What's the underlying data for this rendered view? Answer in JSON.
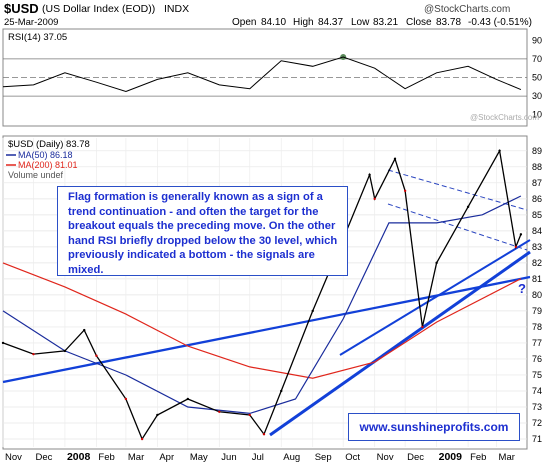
{
  "header": {
    "symbol": "$USD",
    "name": "(US Dollar Index (EOD))",
    "exchange": "INDX",
    "date": "25-Mar-2009",
    "copyright": "@StockCharts.com",
    "open_label": "Open",
    "open": "84.10",
    "high_label": "High",
    "high": "84.37",
    "low_label": "Low",
    "low": "83.21",
    "close_label": "Close",
    "close": "83.78",
    "change": "-0.43 (-0.51%)",
    "watermark": "@StockCharts.com"
  },
  "annotation": "Flag formation is generally known as a sign of a trend continuation - and often the target for the breakout equals the preceding move. On the other hand RSI briefly dropped below the 30 level, which previously indicated a bottom - the signals are mixed.",
  "website": "www.sunshineprofits.com",
  "question_mark": "?",
  "colors": {
    "price": "#000000",
    "up_bar": "#000000",
    "down_bar": "#cc0000",
    "ma50": "#1a2c9c",
    "ma200": "#e0261c",
    "trend": "#1240d8",
    "rsi_fill_over": "#5a8a5a",
    "rsi_fill_under": "#8a3a4a"
  },
  "chart_data": [
    {
      "type": "line",
      "title": "RSI(14) 37.05",
      "indicator": "RSI(14)",
      "last_value": 37.05,
      "y_ticks": [
        "90",
        "70",
        "50",
        "30",
        "10"
      ],
      "ylim": [
        0,
        100
      ],
      "reference_lines": [
        70,
        50,
        30
      ],
      "x": [
        "2007-11",
        "2007-12",
        "2008-01",
        "2008-02",
        "2008-03",
        "2008-04",
        "2008-05",
        "2008-06",
        "2008-07",
        "2008-08",
        "2008-09",
        "2008-10",
        "2008-11",
        "2008-12",
        "2009-01",
        "2009-02",
        "2009-03",
        "2009-03-25"
      ],
      "values": [
        40,
        42,
        55,
        45,
        35,
        48,
        55,
        42,
        38,
        68,
        62,
        72,
        60,
        38,
        55,
        62,
        48,
        37
      ]
    },
    {
      "type": "line",
      "title": "$USD (Daily) 83.78",
      "legend": [
        "$USD (Daily) 83.78",
        "MA(50) 86.18",
        "MA(200) 81.01",
        "Volume undef"
      ],
      "ylim": [
        70.5,
        89.8
      ],
      "y_ticks": [
        "89",
        "88",
        "87",
        "86",
        "85",
        "84",
        "83",
        "82",
        "81",
        "80",
        "79",
        "78",
        "77",
        "76",
        "75",
        "74",
        "73",
        "72",
        "71"
      ],
      "x_ticks": [
        "Nov",
        "Dec",
        "2008",
        "Feb",
        "Mar",
        "Apr",
        "May",
        "Jun",
        "Jul",
        "Aug",
        "Sep",
        "Oct",
        "Nov",
        "Dec",
        "2009",
        "Feb",
        "Mar"
      ],
      "series": [
        {
          "name": "$USD (Daily) 83.78",
          "x": [
            "2007-11-01",
            "2007-12-01",
            "2008-01-01",
            "2008-01-20",
            "2008-02-01",
            "2008-03-01",
            "2008-03-17",
            "2008-04-01",
            "2008-05-01",
            "2008-06-01",
            "2008-07-01",
            "2008-07-15",
            "2008-08-01",
            "2008-09-01",
            "2008-10-01",
            "2008-10-27",
            "2008-11-01",
            "2008-11-21",
            "2008-12-01",
            "2008-12-18",
            "2009-01-01",
            "2009-02-01",
            "2009-03-04",
            "2009-03-20",
            "2009-03-25"
          ],
          "values": [
            77.0,
            76.3,
            76.5,
            77.8,
            76.2,
            73.5,
            71.0,
            72.5,
            73.5,
            72.7,
            72.5,
            71.3,
            74.0,
            79.0,
            83.5,
            87.5,
            86.0,
            88.5,
            86.5,
            78.0,
            82.0,
            85.5,
            89.0,
            83.0,
            83.78
          ]
        },
        {
          "name": "MA(50) 86.18",
          "x": [
            "2007-11-01",
            "2008-01-01",
            "2008-03-01",
            "2008-05-01",
            "2008-07-01",
            "2008-08-15",
            "2008-10-01",
            "2008-11-15",
            "2009-01-01",
            "2009-02-15",
            "2009-03-25"
          ],
          "values": [
            79.0,
            76.5,
            75.0,
            73.0,
            72.6,
            73.5,
            78.5,
            84.5,
            84.5,
            85.0,
            86.18
          ]
        },
        {
          "name": "MA(200) 81.01",
          "x": [
            "2007-11-01",
            "2008-01-01",
            "2008-03-01",
            "2008-05-01",
            "2008-07-01",
            "2008-09-01",
            "2008-11-01",
            "2009-01-01",
            "2009-03-25"
          ],
          "values": [
            82.0,
            80.5,
            78.8,
            76.8,
            75.5,
            74.8,
            75.8,
            78.3,
            81.01
          ]
        }
      ]
    }
  ]
}
